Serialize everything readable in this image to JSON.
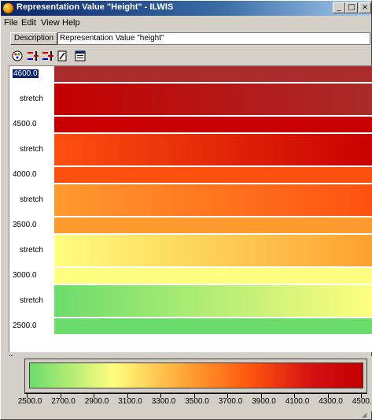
{
  "window": {
    "title": "Representation Value \"Height\" - ILWIS",
    "icon": "ilwis-app-icon",
    "controls": {
      "minimize": "_",
      "maximize": "□",
      "close": "×"
    }
  },
  "menu": {
    "items": [
      "File",
      "Edit",
      "View",
      "Help"
    ]
  },
  "description": {
    "button_label": "Description",
    "value": "Representation Value \"height\""
  },
  "toolbar": {
    "icons": [
      "add-color-icon",
      "insert-limit-icon",
      "delete-limit-icon",
      "edit-icon",
      "properties-icon"
    ]
  },
  "rows": [
    {
      "label": "4600.0",
      "type": "value",
      "selected": true,
      "colors": [
        "#a92b2b",
        "#a92b2b"
      ]
    },
    {
      "label": "stretch",
      "type": "stretch",
      "colors": [
        "#c30000",
        "#a92b2b"
      ]
    },
    {
      "label": "4500.0",
      "type": "value",
      "colors": [
        "#c80000",
        "#c80000"
      ]
    },
    {
      "label": "stretch",
      "type": "stretch",
      "colors": [
        "#ff5010",
        "#c80000"
      ]
    },
    {
      "label": "4000.0",
      "type": "value",
      "colors": [
        "#ff5010",
        "#ff5010"
      ]
    },
    {
      "label": "stretch",
      "type": "stretch",
      "colors": [
        "#ff9a2e",
        "#ff5010"
      ]
    },
    {
      "label": "3500.0",
      "type": "value",
      "colors": [
        "#ff9a2e",
        "#ff9a2e"
      ]
    },
    {
      "label": "stretch",
      "type": "stretch",
      "colors": [
        "#fffe80",
        "#ffa030"
      ]
    },
    {
      "label": "3000.0",
      "type": "value",
      "colors": [
        "#fffe80",
        "#fffe80"
      ]
    },
    {
      "label": "stretch",
      "type": "stretch",
      "colors": [
        "#6bdc6b",
        "#fffe80"
      ]
    },
    {
      "label": "2500.0",
      "type": "value",
      "colors": [
        "#6bdc6b",
        "#6bdc6b"
      ]
    }
  ],
  "legend": {
    "ticks": [
      "2500.0",
      "2700.0",
      "2900.0",
      "3100.0",
      "3300.0",
      "3500.0",
      "3700.0",
      "3900.0",
      "4100.0",
      "4300.0",
      "4500.0"
    ]
  },
  "splitter_label": "×"
}
